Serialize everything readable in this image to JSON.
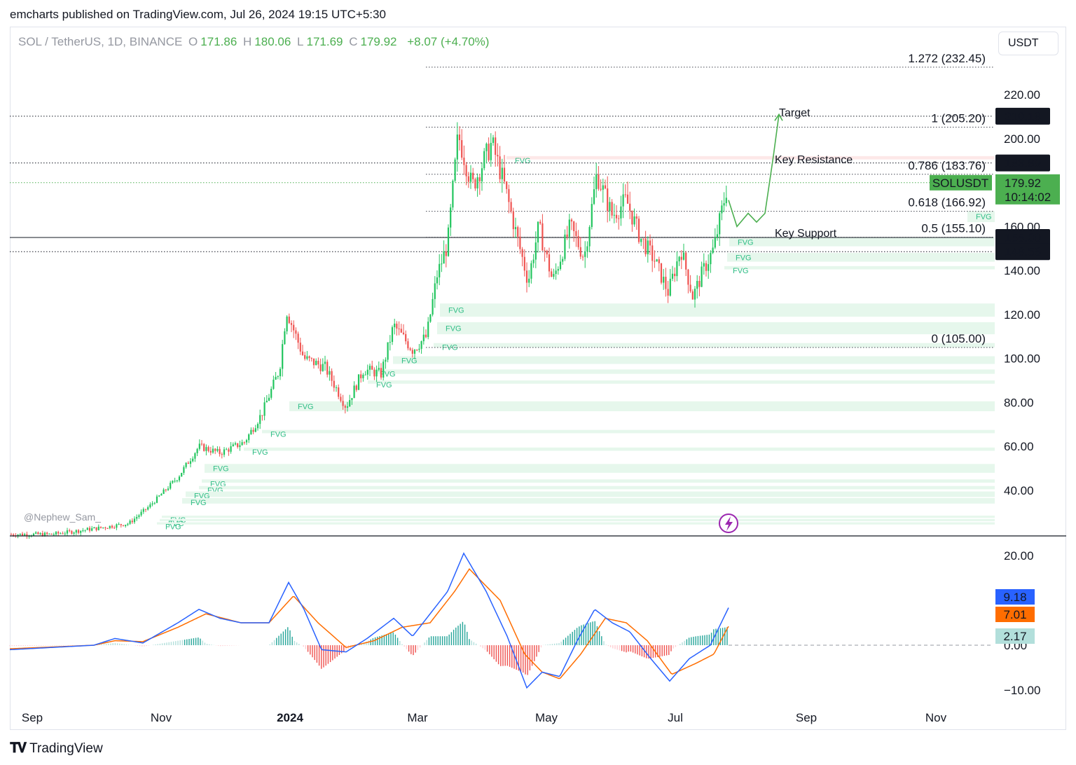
{
  "header": {
    "publisher": "emcharts published on TradingView.com, Jul 26, 2024 19:15 UTC+5:30"
  },
  "legend": {
    "symbol": "SOL / TetherUS, 1D, BINANCE",
    "open_label": "O",
    "open": "171.86",
    "high_label": "H",
    "high": "180.06",
    "low_label": "L",
    "low": "171.69",
    "close_label": "C",
    "close": "179.92",
    "change": "+8.07 (+4.70%)"
  },
  "currency": "USDT",
  "watermark": "@Nephew_Sam_",
  "brand": "TradingView",
  "colors": {
    "up": "#26a69a",
    "down": "#ef5350",
    "up_bright": "#22c55e",
    "macd": "#2962ff",
    "signal": "#ff6d00",
    "fvg": "#e6f7ec",
    "price_tag": "#4caf50"
  },
  "chart_data": {
    "type": "candlestick",
    "symbol": "SOLUSDT",
    "timeframe": "1D",
    "x_ticks": [
      "Sep",
      "Nov",
      "2024",
      "Mar",
      "May",
      "Jul",
      "Sep",
      "Nov"
    ],
    "y_ticks": [
      "220.00",
      "200.00",
      "180.00",
      "160.00",
      "140.00",
      "120.00",
      "100.00",
      "80.00",
      "60.00",
      "40.00"
    ],
    "ylim": [
      24,
      250
    ],
    "current_price": {
      "label": "SOLUSDT",
      "value": "179.92",
      "countdown": "10:14:02"
    },
    "key_levels": [
      {
        "label": "210.18",
        "value": 210.18,
        "text": "Target"
      },
      {
        "label": "188.89",
        "value": 188.89,
        "text": "Key Resistance"
      },
      {
        "label": "155.00",
        "value": 155.0,
        "text": "Key Support"
      },
      {
        "label": "148.56",
        "value": 148.56,
        "text": ""
      }
    ],
    "fibonacci": [
      {
        "label": "1.272 (232.45)",
        "value": 232.45
      },
      {
        "label": "1 (205.20)",
        "value": 205.2
      },
      {
        "label": "0.786 (183.76)",
        "value": 183.76
      },
      {
        "label": "0.618 (166.92)",
        "value": 166.92
      },
      {
        "label": "0.5 (155.10)",
        "value": 155.1
      },
      {
        "label": "0 (105.00)",
        "value": 105.0
      }
    ],
    "fvg_label": "FVG",
    "fvg_zones": [
      {
        "low": 190.5,
        "high": 192.0,
        "bearish": true,
        "label_x": 735
      },
      {
        "low": 162.0,
        "high": 167.0,
        "label_x": 1393
      },
      {
        "low": 151.0,
        "high": 155.0,
        "label_x": 1053
      },
      {
        "low": 144.0,
        "high": 148.0,
        "label_x": 1050
      },
      {
        "low": 140.5,
        "high": 142.0,
        "label_x": 1046
      },
      {
        "low": 119.0,
        "high": 125.0,
        "label_x": 640
      },
      {
        "low": 111.0,
        "high": 116.5,
        "label_x": 636
      },
      {
        "low": 105.0,
        "high": 107.0,
        "label_x": 631
      },
      {
        "low": 97.5,
        "high": 101.0,
        "label_x": 573
      },
      {
        "low": 93.0,
        "high": 95.0,
        "label_x": 542
      },
      {
        "low": 88.5,
        "high": 90.0,
        "label_x": 537
      },
      {
        "low": 76.0,
        "high": 80.5,
        "label_x": 425
      },
      {
        "low": 66.0,
        "high": 67.5,
        "label_x": 386
      },
      {
        "low": 58.0,
        "high": 59.5,
        "label_x": 360
      },
      {
        "low": 48.0,
        "high": 52.0,
        "label_x": 304
      },
      {
        "low": 43.5,
        "high": 45.0,
        "label_x": 300
      },
      {
        "low": 40.5,
        "high": 42.0,
        "label_x": 296
      },
      {
        "low": 37.0,
        "high": 39.5,
        "label_x": 277
      },
      {
        "low": 34.0,
        "high": 36.5,
        "label_x": 272
      },
      {
        "low": 27.5,
        "high": 28.5,
        "label_x": 243
      },
      {
        "low": 26.0,
        "high": 27.0,
        "label_x": 240
      },
      {
        "low": 24.5,
        "high": 25.5,
        "label_x": 236
      }
    ],
    "price_anchors": [
      [
        0,
        20
      ],
      [
        60,
        20
      ],
      [
        130,
        23
      ],
      [
        170,
        25
      ],
      [
        200,
        33
      ],
      [
        240,
        46
      ],
      [
        270,
        60
      ],
      [
        300,
        57
      ],
      [
        335,
        62
      ],
      [
        360,
        75
      ],
      [
        385,
        95
      ],
      [
        395,
        122
      ],
      [
        420,
        100
      ],
      [
        450,
        96
      ],
      [
        480,
        78
      ],
      [
        505,
        95
      ],
      [
        530,
        93
      ],
      [
        548,
        115
      ],
      [
        575,
        104
      ],
      [
        595,
        110
      ],
      [
        610,
        138
      ],
      [
        625,
        152
      ],
      [
        640,
        202
      ],
      [
        660,
        178
      ],
      [
        688,
        198
      ],
      [
        705,
        180
      ],
      [
        725,
        154
      ],
      [
        740,
        135
      ],
      [
        755,
        160
      ],
      [
        775,
        135
      ],
      [
        800,
        160
      ],
      [
        820,
        146
      ],
      [
        838,
        184
      ],
      [
        860,
        165
      ],
      [
        880,
        172
      ],
      [
        900,
        155
      ],
      [
        920,
        145
      ],
      [
        940,
        130
      ],
      [
        958,
        150
      ],
      [
        975,
        128
      ],
      [
        990,
        140
      ],
      [
        1005,
        150
      ],
      [
        1015,
        165
      ],
      [
        1025,
        180
      ],
      [
        1040,
        172
      ]
    ],
    "projection": [
      [
        1040,
        172
      ],
      [
        1052,
        160
      ],
      [
        1068,
        166
      ],
      [
        1080,
        162
      ],
      [
        1092,
        166
      ],
      [
        1104,
        192
      ],
      [
        1112,
        211
      ]
    ],
    "macd": {
      "y_ticks": [
        "20.00",
        "0.00",
        "−10.00"
      ],
      "ylim": [
        -12,
        22
      ],
      "values": {
        "macd": "9.18",
        "signal": "7.01",
        "histogram": "2.17"
      },
      "macd_anchors": [
        [
          0,
          -1
        ],
        [
          120,
          0
        ],
        [
          150,
          1.5
        ],
        [
          190,
          0.5
        ],
        [
          240,
          5
        ],
        [
          270,
          8
        ],
        [
          300,
          6
        ],
        [
          330,
          5
        ],
        [
          370,
          5
        ],
        [
          398,
          14
        ],
        [
          420,
          8
        ],
        [
          445,
          -1
        ],
        [
          480,
          -1.5
        ],
        [
          510,
          1.5
        ],
        [
          548,
          6
        ],
        [
          575,
          2
        ],
        [
          605,
          8
        ],
        [
          625,
          12
        ],
        [
          648,
          20.5
        ],
        [
          680,
          12
        ],
        [
          710,
          2
        ],
        [
          738,
          -9.5
        ],
        [
          760,
          -6
        ],
        [
          785,
          -7
        ],
        [
          810,
          1
        ],
        [
          835,
          8
        ],
        [
          860,
          5
        ],
        [
          885,
          3
        ],
        [
          915,
          -3
        ],
        [
          942,
          -8
        ],
        [
          970,
          -3
        ],
        [
          1000,
          0
        ],
        [
          1028,
          9
        ],
        [
          1040,
          9.2
        ]
      ],
      "signal_anchors": [
        [
          0,
          -0.8
        ],
        [
          120,
          0
        ],
        [
          150,
          1
        ],
        [
          190,
          0.8
        ],
        [
          240,
          4
        ],
        [
          280,
          7
        ],
        [
          330,
          5
        ],
        [
          370,
          5
        ],
        [
          405,
          11
        ],
        [
          440,
          5
        ],
        [
          480,
          -0.5
        ],
        [
          520,
          1
        ],
        [
          560,
          4
        ],
        [
          600,
          5
        ],
        [
          635,
          12
        ],
        [
          656,
          17
        ],
        [
          700,
          10
        ],
        [
          735,
          -2
        ],
        [
          760,
          -6
        ],
        [
          785,
          -7.5
        ],
        [
          815,
          -2
        ],
        [
          850,
          6
        ],
        [
          880,
          5
        ],
        [
          910,
          1
        ],
        [
          945,
          -6.5
        ],
        [
          980,
          -4
        ],
        [
          1005,
          -2
        ],
        [
          1025,
          4
        ],
        [
          1040,
          7
        ]
      ]
    }
  }
}
